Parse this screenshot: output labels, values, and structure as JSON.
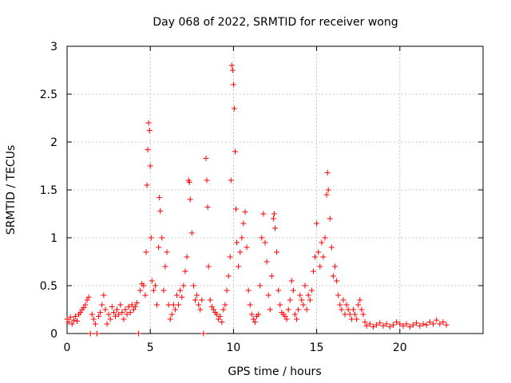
{
  "chart_data": {
    "type": "scatter",
    "title": "Day 068 of 2022, SRMTID for receiver wong",
    "xlabel": "GPS time / hours",
    "ylabel": "SRMTID / TECUs",
    "xlim": [
      0,
      25
    ],
    "ylim": [
      0,
      3
    ],
    "xticks": [
      0,
      5,
      10,
      15,
      20
    ],
    "yticks": [
      0,
      0.5,
      1,
      1.5,
      2,
      2.5,
      3
    ],
    "xtick_labels": [
      "0",
      "5",
      "10",
      "15",
      "20"
    ],
    "ytick_labels": [
      "0",
      "0.5",
      "1",
      "1.5",
      "2",
      "2.5",
      "3"
    ],
    "grid": true,
    "marker": "+",
    "color": "#ff0000",
    "series": [
      {
        "name": "SRMTID",
        "points": [
          [
            0.0,
            0.15
          ],
          [
            0.1,
            0.12
          ],
          [
            0.2,
            0.17
          ],
          [
            0.3,
            0.1
          ],
          [
            0.4,
            0.14
          ],
          [
            0.5,
            0.18
          ],
          [
            0.6,
            0.13
          ],
          [
            0.7,
            0.2
          ],
          [
            0.8,
            0.22
          ],
          [
            0.9,
            0.25
          ],
          [
            1.0,
            0.27
          ],
          [
            1.1,
            0.3
          ],
          [
            1.2,
            0.35
          ],
          [
            1.3,
            0.38
          ],
          [
            1.4,
            0.0
          ],
          [
            1.5,
            0.2
          ],
          [
            1.6,
            0.15
          ],
          [
            1.7,
            0.1
          ],
          [
            1.8,
            0.0
          ],
          [
            1.9,
            0.18
          ],
          [
            2.0,
            0.22
          ],
          [
            2.1,
            0.3
          ],
          [
            2.2,
            0.4
          ],
          [
            2.3,
            0.25
          ],
          [
            2.4,
            0.1
          ],
          [
            2.5,
            0.2
          ],
          [
            2.6,
            0.15
          ],
          [
            2.7,
            0.28
          ],
          [
            2.8,
            0.22
          ],
          [
            2.9,
            0.18
          ],
          [
            3.0,
            0.25
          ],
          [
            3.1,
            0.2
          ],
          [
            3.2,
            0.3
          ],
          [
            3.3,
            0.22
          ],
          [
            3.4,
            0.15
          ],
          [
            3.5,
            0.25
          ],
          [
            3.6,
            0.2
          ],
          [
            3.7,
            0.28
          ],
          [
            3.8,
            0.22
          ],
          [
            3.9,
            0.3
          ],
          [
            4.0,
            0.25
          ],
          [
            4.1,
            0.28
          ],
          [
            4.2,
            0.32
          ],
          [
            4.3,
            0.0
          ],
          [
            4.4,
            0.45
          ],
          [
            4.5,
            0.52
          ],
          [
            4.6,
            0.5
          ],
          [
            4.7,
            0.4
          ],
          [
            4.75,
            0.85
          ],
          [
            4.8,
            1.55
          ],
          [
            4.85,
            1.92
          ],
          [
            4.9,
            2.2
          ],
          [
            4.95,
            2.12
          ],
          [
            5.0,
            1.75
          ],
          [
            5.05,
            1.0
          ],
          [
            5.1,
            0.55
          ],
          [
            5.2,
            0.45
          ],
          [
            5.3,
            0.5
          ],
          [
            5.4,
            0.3
          ],
          [
            5.5,
            0.9
          ],
          [
            5.55,
            1.42
          ],
          [
            5.6,
            1.28
          ],
          [
            5.7,
            1.0
          ],
          [
            5.8,
            0.45
          ],
          [
            5.9,
            0.7
          ],
          [
            6.0,
            0.85
          ],
          [
            6.1,
            0.3
          ],
          [
            6.2,
            0.15
          ],
          [
            6.3,
            0.2
          ],
          [
            6.4,
            0.3
          ],
          [
            6.5,
            0.25
          ],
          [
            6.6,
            0.4
          ],
          [
            6.7,
            0.3
          ],
          [
            6.8,
            0.45
          ],
          [
            6.9,
            0.38
          ],
          [
            7.0,
            0.5
          ],
          [
            7.1,
            0.65
          ],
          [
            7.2,
            0.8
          ],
          [
            7.3,
            1.6
          ],
          [
            7.35,
            1.58
          ],
          [
            7.4,
            1.4
          ],
          [
            7.5,
            1.05
          ],
          [
            7.6,
            0.5
          ],
          [
            7.7,
            0.35
          ],
          [
            7.8,
            0.4
          ],
          [
            7.9,
            0.3
          ],
          [
            8.0,
            0.25
          ],
          [
            8.1,
            0.35
          ],
          [
            8.2,
            0.0
          ],
          [
            8.35,
            1.83
          ],
          [
            8.4,
            1.6
          ],
          [
            8.45,
            1.32
          ],
          [
            8.5,
            0.7
          ],
          [
            8.6,
            0.35
          ],
          [
            8.7,
            0.28
          ],
          [
            8.8,
            0.25
          ],
          [
            8.9,
            0.22
          ],
          [
            9.0,
            0.2
          ],
          [
            9.1,
            0.15
          ],
          [
            9.2,
            0.18
          ],
          [
            9.3,
            0.12
          ],
          [
            9.4,
            0.25
          ],
          [
            9.5,
            0.3
          ],
          [
            9.6,
            0.45
          ],
          [
            9.7,
            0.6
          ],
          [
            9.8,
            0.8
          ],
          [
            9.85,
            1.6
          ],
          [
            9.9,
            2.8
          ],
          [
            9.95,
            2.75
          ],
          [
            10.0,
            2.6
          ],
          [
            10.05,
            2.35
          ],
          [
            10.1,
            1.9
          ],
          [
            10.15,
            1.3
          ],
          [
            10.2,
            0.95
          ],
          [
            10.3,
            0.7
          ],
          [
            10.4,
            0.85
          ],
          [
            10.5,
            1.0
          ],
          [
            10.6,
            1.15
          ],
          [
            10.7,
            1.27
          ],
          [
            10.8,
            0.9
          ],
          [
            10.9,
            0.45
          ],
          [
            11.0,
            0.3
          ],
          [
            11.1,
            0.2
          ],
          [
            11.2,
            0.15
          ],
          [
            11.3,
            0.12
          ],
          [
            11.4,
            0.18
          ],
          [
            11.5,
            0.2
          ],
          [
            11.6,
            0.5
          ],
          [
            11.7,
            1.0
          ],
          [
            11.8,
            1.25
          ],
          [
            11.9,
            0.95
          ],
          [
            12.0,
            0.75
          ],
          [
            12.1,
            0.4
          ],
          [
            12.2,
            0.25
          ],
          [
            12.3,
            0.6
          ],
          [
            12.4,
            1.2
          ],
          [
            12.45,
            1.25
          ],
          [
            12.5,
            1.1
          ],
          [
            12.6,
            0.85
          ],
          [
            12.7,
            0.45
          ],
          [
            12.8,
            0.3
          ],
          [
            12.9,
            0.22
          ],
          [
            13.0,
            0.2
          ],
          [
            13.1,
            0.18
          ],
          [
            13.2,
            0.15
          ],
          [
            13.3,
            0.25
          ],
          [
            13.4,
            0.35
          ],
          [
            13.5,
            0.55
          ],
          [
            13.6,
            0.45
          ],
          [
            13.7,
            0.2
          ],
          [
            13.8,
            0.15
          ],
          [
            13.9,
            0.25
          ],
          [
            14.0,
            0.4
          ],
          [
            14.1,
            0.35
          ],
          [
            14.2,
            0.3
          ],
          [
            14.3,
            0.5
          ],
          [
            14.4,
            0.25
          ],
          [
            14.5,
            0.4
          ],
          [
            14.6,
            0.35
          ],
          [
            14.7,
            0.45
          ],
          [
            14.8,
            0.65
          ],
          [
            14.9,
            0.8
          ],
          [
            15.0,
            1.15
          ],
          [
            15.1,
            0.85
          ],
          [
            15.2,
            0.7
          ],
          [
            15.3,
            0.95
          ],
          [
            15.4,
            0.8
          ],
          [
            15.5,
            1.0
          ],
          [
            15.6,
            1.45
          ],
          [
            15.65,
            1.68
          ],
          [
            15.7,
            1.5
          ],
          [
            15.8,
            1.2
          ],
          [
            15.9,
            0.9
          ],
          [
            16.0,
            0.6
          ],
          [
            16.1,
            0.7
          ],
          [
            16.2,
            0.55
          ],
          [
            16.3,
            0.4
          ],
          [
            16.4,
            0.3
          ],
          [
            16.5,
            0.25
          ],
          [
            16.6,
            0.35
          ],
          [
            16.7,
            0.2
          ],
          [
            16.8,
            0.3
          ],
          [
            16.9,
            0.25
          ],
          [
            17.0,
            0.2
          ],
          [
            17.1,
            0.15
          ],
          [
            17.2,
            0.25
          ],
          [
            17.3,
            0.2
          ],
          [
            17.4,
            0.15
          ],
          [
            17.5,
            0.3
          ],
          [
            17.6,
            0.35
          ],
          [
            17.7,
            0.25
          ],
          [
            17.8,
            0.2
          ],
          [
            17.9,
            0.12
          ],
          [
            18.0,
            0.08
          ],
          [
            18.2,
            0.1
          ],
          [
            18.4,
            0.07
          ],
          [
            18.6,
            0.09
          ],
          [
            18.8,
            0.11
          ],
          [
            19.0,
            0.08
          ],
          [
            19.2,
            0.1
          ],
          [
            19.4,
            0.07
          ],
          [
            19.6,
            0.09
          ],
          [
            19.8,
            0.12
          ],
          [
            20.0,
            0.1
          ],
          [
            20.2,
            0.08
          ],
          [
            20.4,
            0.1
          ],
          [
            20.6,
            0.07
          ],
          [
            20.8,
            0.09
          ],
          [
            21.0,
            0.11
          ],
          [
            21.2,
            0.08
          ],
          [
            21.4,
            0.1
          ],
          [
            21.6,
            0.09
          ],
          [
            21.8,
            0.12
          ],
          [
            22.0,
            0.1
          ],
          [
            22.2,
            0.14
          ],
          [
            22.4,
            0.1
          ],
          [
            22.6,
            0.12
          ],
          [
            22.8,
            0.09
          ]
        ]
      }
    ]
  }
}
